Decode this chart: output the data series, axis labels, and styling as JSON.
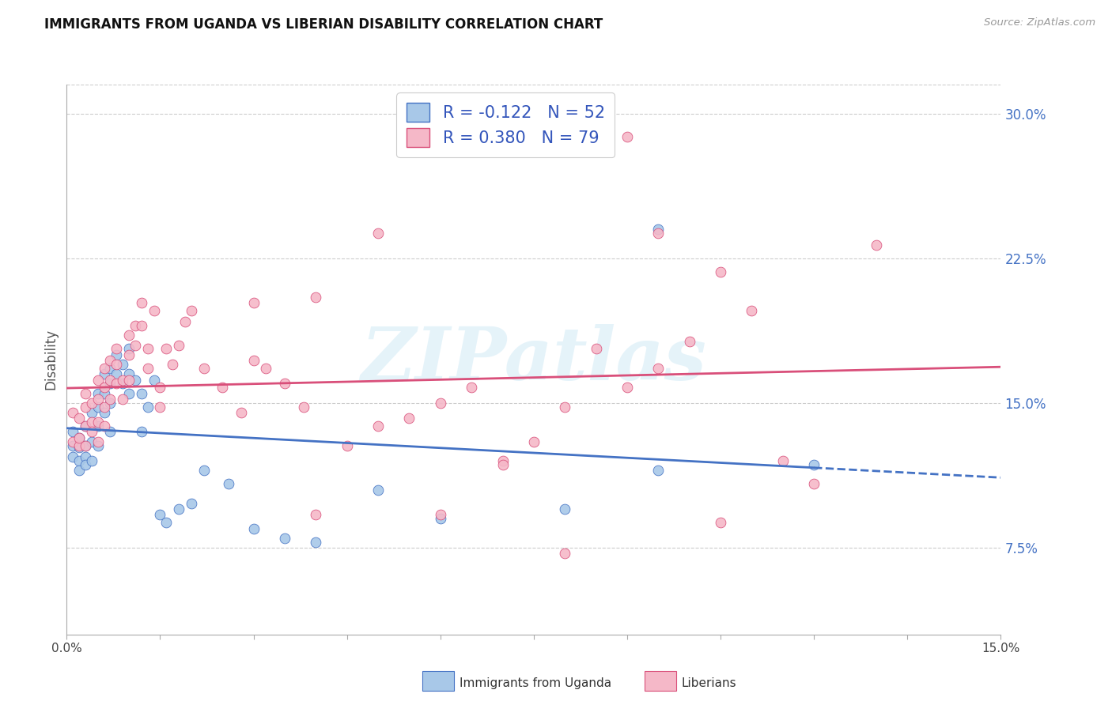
{
  "title": "IMMIGRANTS FROM UGANDA VS LIBERIAN DISABILITY CORRELATION CHART",
  "source": "Source: ZipAtlas.com",
  "ylabel": "Disability",
  "watermark_text": "ZIPatlas",
  "legend_r1": "R = -0.122",
  "legend_n1": "N = 52",
  "legend_r2": "R = 0.380",
  "legend_n2": "N = 79",
  "color_uganda": "#a8c8e8",
  "color_liberia": "#f5b8c8",
  "line_color_uganda": "#4472c4",
  "line_color_liberia": "#d94f7a",
  "xmin": 0.0,
  "xmax": 0.15,
  "ymin": 0.03,
  "ymax": 0.315,
  "yticks": [
    0.075,
    0.15,
    0.225,
    0.3
  ],
  "ytick_labels": [
    "7.5%",
    "15.0%",
    "22.5%",
    "30.0%"
  ],
  "xticks": [
    0.0,
    0.015,
    0.03,
    0.045,
    0.06,
    0.075,
    0.09,
    0.105,
    0.12,
    0.135,
    0.15
  ],
  "legend1_label": "Immigrants from Uganda",
  "legend2_label": "Liberians",
  "uganda_x": [
    0.001,
    0.001,
    0.001,
    0.002,
    0.002,
    0.002,
    0.002,
    0.003,
    0.003,
    0.003,
    0.003,
    0.004,
    0.004,
    0.004,
    0.005,
    0.005,
    0.005,
    0.005,
    0.006,
    0.006,
    0.006,
    0.007,
    0.007,
    0.007,
    0.007,
    0.008,
    0.008,
    0.009,
    0.009,
    0.01,
    0.01,
    0.01,
    0.011,
    0.012,
    0.012,
    0.013,
    0.014,
    0.015,
    0.016,
    0.018,
    0.02,
    0.022,
    0.026,
    0.03,
    0.035,
    0.04,
    0.05,
    0.06,
    0.08,
    0.095,
    0.095,
    0.12
  ],
  "uganda_y": [
    0.135,
    0.128,
    0.122,
    0.132,
    0.127,
    0.12,
    0.115,
    0.138,
    0.128,
    0.122,
    0.118,
    0.145,
    0.13,
    0.12,
    0.155,
    0.148,
    0.138,
    0.128,
    0.165,
    0.155,
    0.145,
    0.168,
    0.16,
    0.15,
    0.135,
    0.175,
    0.165,
    0.17,
    0.16,
    0.178,
    0.165,
    0.155,
    0.162,
    0.155,
    0.135,
    0.148,
    0.162,
    0.092,
    0.088,
    0.095,
    0.098,
    0.115,
    0.108,
    0.085,
    0.08,
    0.078,
    0.105,
    0.09,
    0.095,
    0.115,
    0.24,
    0.118
  ],
  "liberia_x": [
    0.001,
    0.001,
    0.002,
    0.002,
    0.002,
    0.003,
    0.003,
    0.003,
    0.003,
    0.004,
    0.004,
    0.004,
    0.005,
    0.005,
    0.005,
    0.005,
    0.006,
    0.006,
    0.006,
    0.006,
    0.007,
    0.007,
    0.007,
    0.008,
    0.008,
    0.008,
    0.009,
    0.009,
    0.01,
    0.01,
    0.01,
    0.011,
    0.011,
    0.012,
    0.012,
    0.013,
    0.013,
    0.014,
    0.015,
    0.015,
    0.016,
    0.017,
    0.018,
    0.019,
    0.02,
    0.022,
    0.025,
    0.028,
    0.03,
    0.032,
    0.035,
    0.038,
    0.04,
    0.045,
    0.05,
    0.055,
    0.06,
    0.065,
    0.07,
    0.075,
    0.08,
    0.085,
    0.09,
    0.095,
    0.1,
    0.105,
    0.11,
    0.115,
    0.12,
    0.09,
    0.095,
    0.105,
    0.04,
    0.03,
    0.05,
    0.07,
    0.06,
    0.08,
    0.13
  ],
  "liberia_y": [
    0.13,
    0.145,
    0.128,
    0.142,
    0.132,
    0.138,
    0.155,
    0.128,
    0.148,
    0.15,
    0.14,
    0.135,
    0.162,
    0.152,
    0.14,
    0.13,
    0.168,
    0.158,
    0.148,
    0.138,
    0.172,
    0.162,
    0.152,
    0.178,
    0.17,
    0.16,
    0.162,
    0.152,
    0.185,
    0.175,
    0.162,
    0.19,
    0.18,
    0.202,
    0.19,
    0.178,
    0.168,
    0.198,
    0.158,
    0.148,
    0.178,
    0.17,
    0.18,
    0.192,
    0.198,
    0.168,
    0.158,
    0.145,
    0.202,
    0.168,
    0.16,
    0.148,
    0.092,
    0.128,
    0.138,
    0.142,
    0.15,
    0.158,
    0.12,
    0.13,
    0.148,
    0.178,
    0.158,
    0.168,
    0.182,
    0.218,
    0.198,
    0.12,
    0.108,
    0.288,
    0.238,
    0.088,
    0.205,
    0.172,
    0.238,
    0.118,
    0.092,
    0.072,
    0.232
  ]
}
